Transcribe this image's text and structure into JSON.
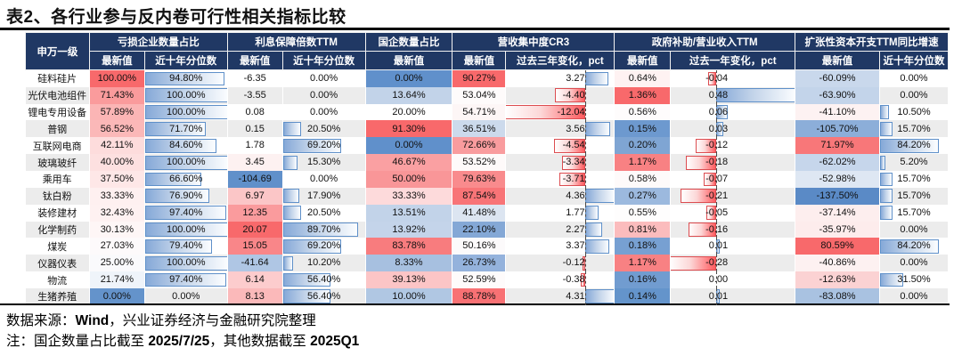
{
  "title": "表2、各行业参与反内卷可行性相关指标比较",
  "footer": {
    "source_prefix": "数据来源：",
    "source_bold": "Wind",
    "source_rest": "，兴业证券经济与金融研究院整理",
    "note_prefix": "注：国企数量占比截至 ",
    "note_date1": "2025/7/25",
    "note_mid": "，其他数据截至 ",
    "note_date2": "2025Q1"
  },
  "colors": {
    "header_bg": "#203864",
    "header_text": "#FFFFFF",
    "row_band": "#ECECEC",
    "scale_red_max": "#F8696B",
    "scale_blue_max": "#5A8AC6",
    "bar_blue_border": "#5F90C9",
    "bar_red_border": "#DC4C50",
    "rule_black": "#000000"
  },
  "table": {
    "row_header": "申万一级",
    "groups": [
      {
        "label": "亏损企业数量占比",
        "cols": [
          "最新值",
          "近十年分位数"
        ]
      },
      {
        "label": "利息保障倍数TTM",
        "cols": [
          "最新值",
          "近十年分位数"
        ]
      },
      {
        "label": "国企数量占比",
        "cols": [
          "最新值"
        ]
      },
      {
        "label": "营收集中度CR3",
        "cols": [
          "最新值",
          "过去三年变化，pct"
        ]
      },
      {
        "label": "政府补助/营业收入TTM",
        "cols": [
          "最新值",
          "过去一年变化，pct"
        ]
      },
      {
        "label": "扩张性资本开支TTM同比增速",
        "cols": [
          "最新值",
          "近十年分位数"
        ]
      }
    ],
    "col_widths_pct": [
      6.94,
      5.98,
      8.97,
      5.98,
      8.97,
      9.45,
      5.79,
      11.77,
      6.08,
      13.5,
      9.16,
      7.43
    ],
    "columns": [
      {
        "kind": "scale",
        "key": "loss_latest"
      },
      {
        "kind": "databar",
        "key": "loss_pctile_10y"
      },
      {
        "kind": "scale",
        "key": "interest_cover_ttm_latest"
      },
      {
        "kind": "databar",
        "key": "interest_pctile_10y"
      },
      {
        "kind": "scale",
        "key": "soe_share_latest"
      },
      {
        "kind": "scale",
        "key": "cr3_latest"
      },
      {
        "kind": "axisbar",
        "key": "cr3_chg_3y_pct",
        "min": -12.04,
        "max": 4.36,
        "text_pad_pct": 27
      },
      {
        "kind": "scale",
        "key": "subsidy_rev_ttm_latest"
      },
      {
        "kind": "axisbar",
        "key": "subsidy_chg_1y_pct",
        "min": -0.28,
        "max": 0.48,
        "text_pad_pct": 54
      },
      {
        "kind": "scale",
        "key": "capex_ttm_yoy_latest"
      },
      {
        "kind": "databar",
        "key": "capex_pctile_10y"
      }
    ],
    "rows": [
      {
        "name": "硅料硅片",
        "cells": [
          {
            "t": "100.00%",
            "bg": "#F8696B"
          },
          {
            "t": "94.80%",
            "v": 94.8
          },
          {
            "t": "-6.35"
          },
          {
            "t": "0.00%",
            "v": 0
          },
          {
            "t": "0.00%",
            "bg": "#6090CB"
          },
          {
            "t": "90.27%",
            "bg": "#F8696B"
          },
          {
            "t": "3.27",
            "v": 3.27
          },
          {
            "t": "0.64%",
            "bg": "#FEF2F2"
          },
          {
            "t": "-0.04",
            "v": -0.04
          },
          {
            "t": "-60.09%",
            "bg": "#C9D8EC"
          },
          {
            "t": "0.00%",
            "v": 0
          }
        ]
      },
      {
        "name": "光伏电池组件",
        "cells": [
          {
            "t": "71.43%",
            "bg": "#FA9B9C"
          },
          {
            "t": "100.00%",
            "v": 100
          },
          {
            "t": "-3.55"
          },
          {
            "t": "0.00%",
            "v": 0
          },
          {
            "t": "13.64%",
            "bg": "#C2D3E9"
          },
          {
            "t": "53.04%",
            "bg": "#FEFBFB"
          },
          {
            "t": "-4.40",
            "v": -4.4
          },
          {
            "t": "1.36%",
            "bg": "#F8696B"
          },
          {
            "t": "0.48",
            "v": 0.48
          },
          {
            "t": "-63.90%",
            "bg": "#C3D4EA"
          },
          {
            "t": "0.00%",
            "v": 0
          }
        ]
      },
      {
        "name": "锂电专用设备",
        "cells": [
          {
            "t": "57.89%",
            "bg": "#FBB5B5"
          },
          {
            "t": "100.00%",
            "v": 100
          },
          {
            "t": "0.08"
          },
          {
            "t": "0.00%",
            "v": 0
          },
          {
            "t": "20.00%"
          },
          {
            "t": "54.71%",
            "bg": "#FDF6F6"
          },
          {
            "t": "-12.04",
            "v": -12.04
          },
          {
            "t": "0.56%",
            "bg": "#FEFCFC"
          },
          {
            "t": "0.06",
            "v": 0.06
          },
          {
            "t": "-41.10%",
            "bg": "#FDF2F2"
          },
          {
            "t": "10.50%",
            "v": 10.5
          }
        ]
      },
      {
        "name": "普钢",
        "cells": [
          {
            "t": "56.52%",
            "bg": "#FBB8B8"
          },
          {
            "t": "71.70%",
            "v": 71.7
          },
          {
            "t": "0.15"
          },
          {
            "t": "20.50%",
            "v": 20.5
          },
          {
            "t": "91.30%",
            "bg": "#F8696B"
          },
          {
            "t": "36.51%",
            "bg": "#CCDAEC"
          },
          {
            "t": "3.56",
            "v": 3.56
          },
          {
            "t": "0.15%",
            "bg": "#6D99CF"
          },
          {
            "t": "0.03",
            "v": 0.03
          },
          {
            "t": "-105.70%",
            "bg": "#8CAED9"
          },
          {
            "t": "15.70%",
            "v": 15.7
          }
        ]
      },
      {
        "name": "互联网电商",
        "cells": [
          {
            "t": "42.11%",
            "bg": "#FDDCDC"
          },
          {
            "t": "84.60%",
            "v": 84.6
          },
          {
            "t": "1.78"
          },
          {
            "t": "69.20%",
            "v": 69.2
          },
          {
            "t": "0.00%",
            "bg": "#6090CB"
          },
          {
            "t": "72.66%",
            "bg": "#F99C9E"
          },
          {
            "t": "-4.54",
            "v": -4.54
          },
          {
            "t": "0.20%",
            "bg": "#7FA5D3"
          },
          {
            "t": "-0.12",
            "v": -0.12
          },
          {
            "t": "71.97%",
            "bg": "#F87779"
          },
          {
            "t": "84.20%",
            "v": 84.2
          }
        ]
      },
      {
        "name": "玻璃玻纤",
        "cells": [
          {
            "t": "40.00%",
            "bg": "#FDE0E0"
          },
          {
            "t": "100.00%",
            "v": 100
          },
          {
            "t": "3.45",
            "bg": "#FDF1F1"
          },
          {
            "t": "15.30%",
            "v": 15.3
          },
          {
            "t": "46.67%",
            "bg": "#FAA0A2"
          },
          {
            "t": "53.52%",
            "bg": "#FEFAFA"
          },
          {
            "t": "-3.34",
            "v": -3.34
          },
          {
            "t": "1.17%",
            "bg": "#F88183"
          },
          {
            "t": "-0.18",
            "v": -0.18
          },
          {
            "t": "-62.02%",
            "bg": "#C6D6EB"
          },
          {
            "t": "5.20%",
            "v": 5.2
          }
        ]
      },
      {
        "name": "乘用车",
        "cells": [
          {
            "t": "37.50%",
            "bg": "#FEE7E7"
          },
          {
            "t": "66.60%",
            "v": 66.6
          },
          {
            "t": "-104.69",
            "bg": "#6090CA"
          },
          {
            "t": "0.00%",
            "v": 0
          },
          {
            "t": "50.00%",
            "bg": "#F99698"
          },
          {
            "t": "79.63%",
            "bg": "#F98B8D"
          },
          {
            "t": "-3.71",
            "v": -3.71
          },
          {
            "t": "0.58%",
            "bg": "#FEFAFA"
          },
          {
            "t": "-0.07",
            "v": -0.07
          },
          {
            "t": "-52.98%",
            "bg": "#DEE7F3"
          },
          {
            "t": "15.70%",
            "v": 15.7
          }
        ]
      },
      {
        "name": "钛白粉",
        "cells": [
          {
            "t": "33.33%",
            "bg": "#FEF0F0"
          },
          {
            "t": "76.90%",
            "v": 76.9
          },
          {
            "t": "6.97",
            "bg": "#FBC6C7"
          },
          {
            "t": "17.90%",
            "v": 17.9
          },
          {
            "t": "33.33%",
            "bg": "#FDDADB"
          },
          {
            "t": "87.54%",
            "bg": "#F87477"
          },
          {
            "t": "4.36",
            "v": 4.36
          },
          {
            "t": "0.27%",
            "bg": "#9CB9DE"
          },
          {
            "t": "-0.21",
            "v": -0.21
          },
          {
            "t": "-137.50%",
            "bg": "#5A8AC6"
          },
          {
            "t": "15.70%",
            "v": 15.7
          }
        ]
      },
      {
        "name": "装修建材",
        "cells": [
          {
            "t": "32.43%",
            "bg": "#FEF1F1"
          },
          {
            "t": "97.40%",
            "v": 97.4
          },
          {
            "t": "12.35",
            "bg": "#FA9B9D"
          },
          {
            "t": "20.50%",
            "v": 20.5
          },
          {
            "t": "13.51%",
            "bg": "#C2D3E9"
          },
          {
            "t": "41.48%",
            "bg": "#DCE5F1"
          },
          {
            "t": "1.77",
            "v": 1.77
          },
          {
            "t": "0.55%",
            "bg": "#FEFDFD"
          },
          {
            "t": "-0.05",
            "v": -0.05
          },
          {
            "t": "-37.14%",
            "bg": "#FDEEEE"
          },
          {
            "t": "15.70%",
            "v": 15.7
          }
        ]
      },
      {
        "name": "化学制药",
        "cells": [
          {
            "t": "30.13%",
            "bg": "#FEF6F6"
          },
          {
            "t": "100.00%",
            "v": 100
          },
          {
            "t": "20.07",
            "bg": "#F8696B"
          },
          {
            "t": "89.70%",
            "v": 89.7
          },
          {
            "t": "13.92%",
            "bg": "#C4D4EA"
          },
          {
            "t": "22.10%",
            "bg": "#84A8D6"
          },
          {
            "t": "2.27",
            "v": 2.27
          },
          {
            "t": "0.81%",
            "bg": "#FBBCBD"
          },
          {
            "t": "-0.16",
            "v": -0.16
          },
          {
            "t": "-35.97%",
            "bg": "#FDECEC"
          },
          {
            "t": "0.00%",
            "v": 0
          }
        ]
      },
      {
        "name": "煤炭",
        "cells": [
          {
            "t": "27.03%",
            "bg": "#FDFAFB"
          },
          {
            "t": "79.40%",
            "v": 79.4
          },
          {
            "t": "15.05",
            "bg": "#F98689"
          },
          {
            "t": "69.20%",
            "v": 69.2
          },
          {
            "t": "83.78%",
            "bg": "#F87C7E"
          },
          {
            "t": "50.16%",
            "bg": "#FCFAFB"
          },
          {
            "t": "3.37",
            "v": 3.37
          },
          {
            "t": "0.18%",
            "bg": "#77A0D2"
          },
          {
            "t": "0.01",
            "v": 0.01
          },
          {
            "t": "80.59%",
            "bg": "#F8696B"
          },
          {
            "t": "84.20%",
            "v": 84.2
          }
        ]
      },
      {
        "name": "仪器仪表",
        "cells": [
          {
            "t": "25.00%",
            "bg": "#FAFAFC"
          },
          {
            "t": "100.00%",
            "v": 100
          },
          {
            "t": "-41.64",
            "bg": "#AFC6E4"
          },
          {
            "t": "10.20%",
            "v": 10.2
          },
          {
            "t": "8.33%",
            "bg": "#A7C0E0"
          },
          {
            "t": "26.73%",
            "bg": "#94B2DC"
          },
          {
            "t": "-0.12",
            "v": -0.12
          },
          {
            "t": "1.17%",
            "bg": "#F88183"
          },
          {
            "t": "-0.28",
            "v": -0.28
          },
          {
            "t": "-40.86%",
            "bg": "#FDF1F1"
          },
          {
            "t": "0.00%",
            "v": 0
          }
        ]
      },
      {
        "name": "物流",
        "cells": [
          {
            "t": "21.74%",
            "bg": "#EFF4FA"
          },
          {
            "t": "97.40%",
            "v": 97.4
          },
          {
            "t": "6.14",
            "bg": "#FCCCCD"
          },
          {
            "t": "56.40%",
            "v": 56.4
          },
          {
            "t": "39.13%",
            "bg": "#FCC5C6"
          },
          {
            "t": "52.59%",
            "bg": "#FEFBFB"
          },
          {
            "t": "-0.38",
            "v": -0.38
          },
          {
            "t": "0.16%",
            "bg": "#719CD0"
          },
          {
            "t": "0.00",
            "v": 0
          },
          {
            "t": "-12.63%",
            "bg": "#FBD2D3"
          },
          {
            "t": "31.50%",
            "v": 31.5
          }
        ]
      },
      {
        "name": "生猪养殖",
        "cells": [
          {
            "t": "0.00%",
            "bg": "#6493CB"
          },
          {
            "t": "0.00%",
            "v": 0
          },
          {
            "t": "8.13",
            "bg": "#FBB9BA"
          },
          {
            "t": "56.40%",
            "v": 56.4
          },
          {
            "t": "10.00%",
            "bg": "#B0C7E3"
          },
          {
            "t": "88.78%",
            "bg": "#F87174"
          },
          {
            "t": "4.31",
            "v": 4.31
          },
          {
            "t": "0.14%",
            "bg": "#6494CB"
          },
          {
            "t": "0.01",
            "v": 0.01
          },
          {
            "t": "-83.08%",
            "bg": "#A9C2E1"
          },
          {
            "t": "0.00%",
            "v": 0
          }
        ]
      }
    ]
  }
}
